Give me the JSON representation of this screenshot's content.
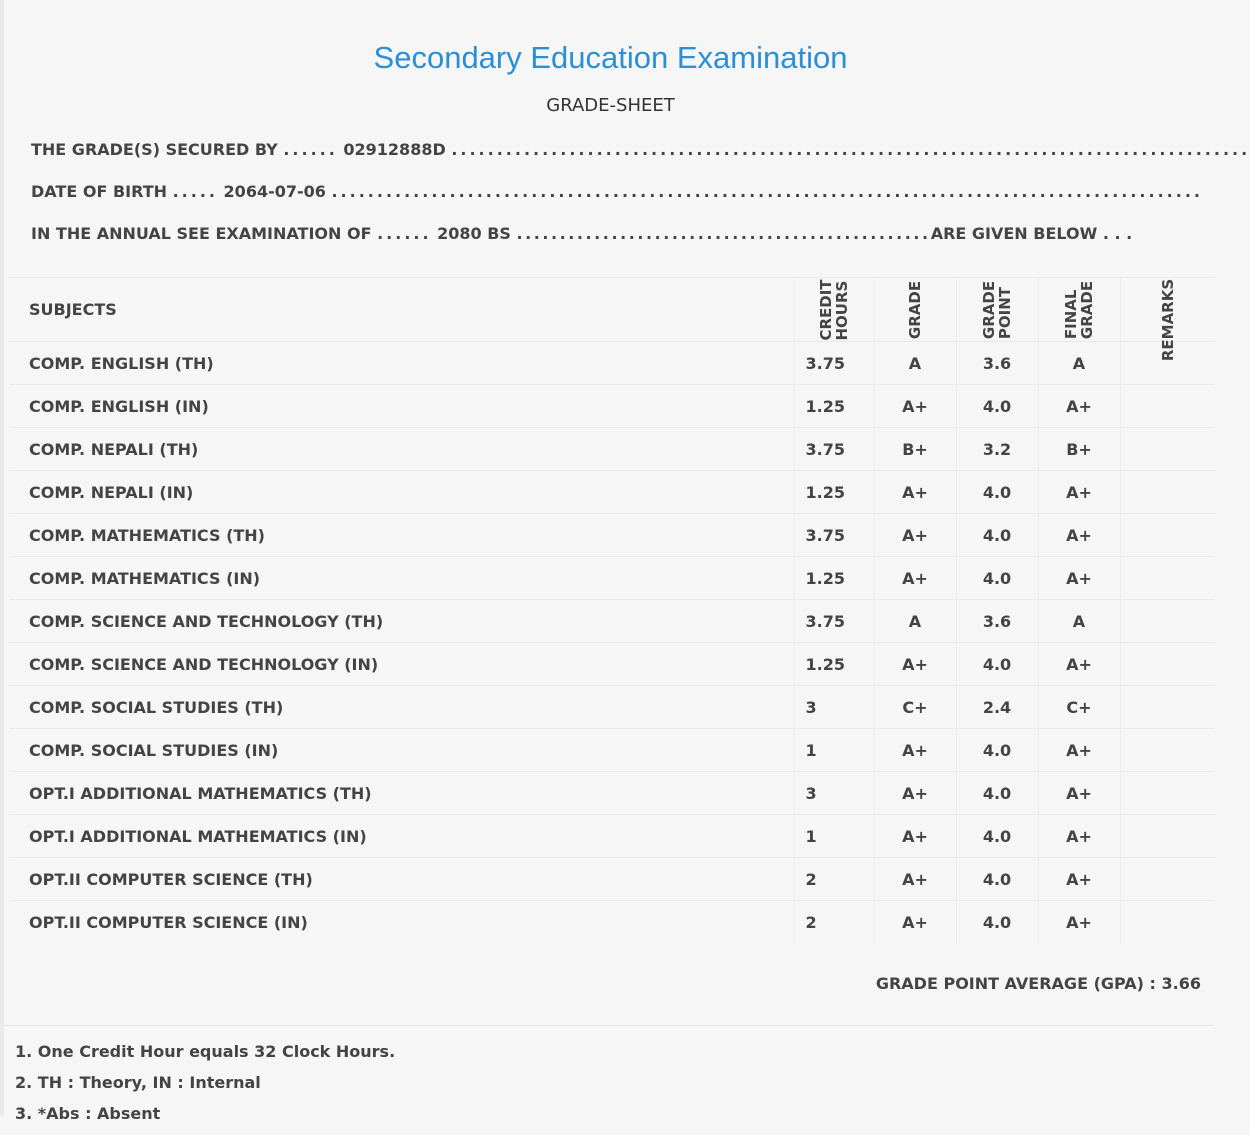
{
  "header": {
    "title": "Secondary Education Examination",
    "subtitle": "GRADE-SHEET"
  },
  "student": {
    "secured_by_label": "THE GRADE(S) SECURED BY",
    "symbol_no": "02912888D",
    "dob_label": "DATE OF BIRTH",
    "dob": "2064-07-06",
    "exam_label": "IN THE ANNUAL SEE EXAMINATION OF",
    "exam_year": "2080 BS",
    "given_below": "ARE GIVEN BELOW . . ."
  },
  "table": {
    "headers": {
      "subjects": "SUBJECTS",
      "credit_hours_1": "CREDIT",
      "credit_hours_2": "HOURS",
      "grade": "GRADE",
      "grade_point_1": "GRADE",
      "grade_point_2": "POINT",
      "final_grade_1": "FINAL",
      "final_grade_2": "GRADE",
      "remarks": "REMARKS"
    },
    "rows": [
      {
        "subject": "COMP. ENGLISH (TH)",
        "credit": "3.75",
        "grade": "A",
        "point": "3.6",
        "final": "A"
      },
      {
        "subject": "COMP. ENGLISH (IN)",
        "credit": "1.25",
        "grade": "A+",
        "point": "4.0",
        "final": "A+"
      },
      {
        "subject": "COMP. NEPALI (TH)",
        "credit": "3.75",
        "grade": "B+",
        "point": "3.2",
        "final": "B+"
      },
      {
        "subject": "COMP. NEPALI (IN)",
        "credit": "1.25",
        "grade": "A+",
        "point": "4.0",
        "final": "A+"
      },
      {
        "subject": "COMP. MATHEMATICS (TH)",
        "credit": "3.75",
        "grade": "A+",
        "point": "4.0",
        "final": "A+"
      },
      {
        "subject": "COMP. MATHEMATICS (IN)",
        "credit": "1.25",
        "grade": "A+",
        "point": "4.0",
        "final": "A+"
      },
      {
        "subject": "COMP. SCIENCE AND TECHNOLOGY (TH)",
        "credit": "3.75",
        "grade": "A",
        "point": "3.6",
        "final": "A"
      },
      {
        "subject": "COMP. SCIENCE AND TECHNOLOGY (IN)",
        "credit": "1.25",
        "grade": "A+",
        "point": "4.0",
        "final": "A+"
      },
      {
        "subject": "COMP. SOCIAL STUDIES (TH)",
        "credit": "3",
        "grade": "C+",
        "point": "2.4",
        "final": "C+"
      },
      {
        "subject": "COMP. SOCIAL STUDIES (IN)",
        "credit": "1",
        "grade": "A+",
        "point": "4.0",
        "final": "A+"
      },
      {
        "subject": "OPT.I ADDITIONAL MATHEMATICS (TH)",
        "credit": "3",
        "grade": "A+",
        "point": "4.0",
        "final": "A+"
      },
      {
        "subject": "OPT.I ADDITIONAL MATHEMATICS (IN)",
        "credit": "1",
        "grade": "A+",
        "point": "4.0",
        "final": "A+"
      },
      {
        "subject": "OPT.II COMPUTER SCIENCE (TH)",
        "credit": "2",
        "grade": "A+",
        "point": "4.0",
        "final": "A+"
      },
      {
        "subject": "OPT.II COMPUTER SCIENCE (IN)",
        "credit": "2",
        "grade": "A+",
        "point": "4.0",
        "final": "A+"
      }
    ]
  },
  "gpa": {
    "label": "GRADE POINT AVERAGE (GPA) :",
    "value": "3.66"
  },
  "notes": [
    "1. One Credit Hour equals 32 Clock Hours.",
    "2. TH : Theory, IN : Internal",
    "3. *Abs : Absent"
  ],
  "colors": {
    "title": "#2b8fd6",
    "background": "#f6f6f6",
    "text": "#444444"
  }
}
